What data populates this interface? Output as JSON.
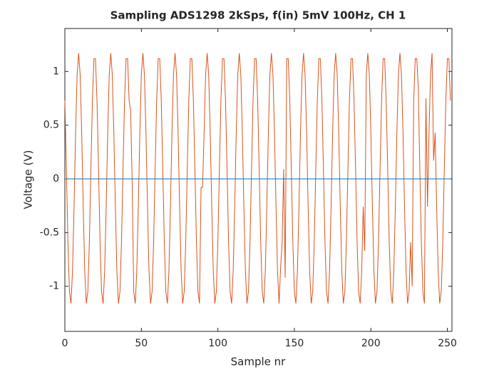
{
  "chart_data": {
    "type": "line",
    "title": "Sampling ADS1298 2kSps, f(in) 5mV 100Hz, CH 1",
    "xlabel": "Sample nr",
    "ylabel": "Voltage (V)",
    "xlim": [
      0,
      253
    ],
    "ylim": [
      -1.42,
      1.4
    ],
    "xticks": [
      0,
      50,
      100,
      150,
      200,
      250
    ],
    "yticks": [
      -1,
      -0.5,
      0,
      0.5,
      1
    ],
    "x": [
      0,
      1,
      2,
      3,
      4,
      5,
      6,
      7,
      8,
      9,
      10,
      11,
      12,
      13,
      14,
      15,
      16,
      17,
      18,
      19,
      20,
      21,
      22,
      23,
      24,
      25,
      26,
      27,
      28,
      29,
      30,
      31,
      32,
      33,
      34,
      35,
      36,
      37,
      38,
      39,
      40,
      41,
      42,
      43,
      44,
      45,
      46,
      47,
      48,
      49,
      50,
      51,
      52,
      53,
      54,
      55,
      56,
      57,
      58,
      59,
      60,
      61,
      62,
      63,
      64,
      65,
      66,
      67,
      68,
      69,
      70,
      71,
      72,
      73,
      74,
      75,
      76,
      77,
      78,
      79,
      80,
      81,
      82,
      83,
      84,
      85,
      86,
      87,
      88,
      89,
      90,
      91,
      92,
      93,
      94,
      95,
      96,
      97,
      98,
      99,
      100,
      101,
      102,
      103,
      104,
      105,
      106,
      107,
      108,
      109,
      110,
      111,
      112,
      113,
      114,
      115,
      116,
      117,
      118,
      119,
      120,
      121,
      122,
      123,
      124,
      125,
      126,
      127,
      128,
      129,
      130,
      131,
      132,
      133,
      134,
      135,
      136,
      137,
      138,
      139,
      140,
      141,
      142,
      143,
      144,
      145,
      146,
      147,
      148,
      149,
      150,
      151,
      152,
      153,
      154,
      155,
      156,
      157,
      158,
      159,
      160,
      161,
      162,
      163,
      164,
      165,
      166,
      167,
      168,
      169,
      170,
      171,
      172,
      173,
      174,
      175,
      176,
      177,
      178,
      179,
      180,
      181,
      182,
      183,
      184,
      185,
      186,
      187,
      188,
      189,
      190,
      191,
      192,
      193,
      194,
      195,
      196,
      197,
      198,
      199,
      200,
      201,
      202,
      203,
      204,
      205,
      206,
      207,
      208,
      209,
      210,
      211,
      212,
      213,
      214,
      215,
      216,
      217,
      218,
      219,
      220,
      221,
      222,
      223,
      224,
      225,
      226,
      227,
      228,
      229,
      230,
      231,
      232,
      233,
      234,
      235,
      236,
      237,
      238,
      239,
      240,
      241,
      242,
      243,
      244,
      245,
      246,
      247,
      248,
      249,
      250,
      251,
      252
    ],
    "series": [
      {
        "color": "#d95319",
        "values": [
          0.73,
          0.09,
          -0.59,
          -1.05,
          -1.16,
          -0.86,
          -0.26,
          0.43,
          0.97,
          1.17,
          0.97,
          0.43,
          -0.26,
          -0.86,
          -1.16,
          -1.05,
          -0.59,
          0.09,
          0.73,
          1.12,
          1.12,
          0.73,
          0.09,
          -0.59,
          -1.05,
          -1.16,
          -0.86,
          -0.26,
          0.43,
          0.97,
          1.17,
          0.97,
          0.43,
          -0.26,
          -0.86,
          -1.16,
          -1.05,
          -0.59,
          0.09,
          0.73,
          1.12,
          1.12,
          0.73,
          0.63,
          -0.05,
          -1.05,
          -1.16,
          -0.86,
          -0.26,
          0.43,
          0.97,
          1.17,
          0.97,
          0.43,
          -0.26,
          -0.86,
          -1.16,
          -1.05,
          -0.59,
          0.09,
          0.73,
          1.12,
          1.12,
          0.73,
          0.09,
          -0.59,
          -1.05,
          -1.16,
          -0.86,
          -0.26,
          0.43,
          0.97,
          1.17,
          0.97,
          0.43,
          -0.26,
          -0.86,
          -1.16,
          -1.05,
          -0.59,
          0.09,
          0.73,
          1.12,
          1.12,
          0.73,
          0.09,
          -0.59,
          -1.05,
          -1.16,
          -0.08,
          -0.08,
          0.43,
          0.97,
          1.17,
          0.97,
          0.43,
          -0.26,
          -0.86,
          -1.16,
          -1.05,
          -0.59,
          0.09,
          0.73,
          1.12,
          1.12,
          0.73,
          0.09,
          -0.59,
          -1.05,
          -1.16,
          -0.86,
          -0.26,
          0.43,
          0.97,
          1.17,
          0.97,
          0.43,
          -0.26,
          -0.86,
          -1.16,
          -1.05,
          -0.59,
          0.09,
          0.73,
          1.12,
          1.12,
          0.73,
          0.09,
          -0.59,
          -1.05,
          -1.16,
          -0.86,
          -0.26,
          0.43,
          0.97,
          1.17,
          0.97,
          0.43,
          -0.26,
          -0.86,
          -1.16,
          -0.83,
          -0.59,
          0.09,
          -0.92,
          1.12,
          1.12,
          0.73,
          0.09,
          -0.59,
          -1.05,
          -1.16,
          -0.86,
          -0.26,
          0.43,
          0.97,
          1.17,
          0.97,
          0.43,
          -0.26,
          -0.86,
          -1.16,
          -1.05,
          -0.59,
          0.09,
          0.73,
          1.12,
          1.12,
          0.73,
          0.09,
          -0.59,
          -1.05,
          -1.16,
          -0.86,
          -0.26,
          0.43,
          0.97,
          1.17,
          0.97,
          0.43,
          -0.26,
          -0.86,
          -1.16,
          -1.05,
          -0.59,
          0.09,
          0.73,
          1.12,
          1.12,
          0.73,
          0.09,
          -0.59,
          -1.05,
          -1.16,
          -0.86,
          -0.26,
          -0.67,
          0.97,
          1.17,
          0.97,
          0.43,
          -0.26,
          -0.86,
          -1.16,
          -1.05,
          -0.59,
          0.09,
          0.73,
          1.12,
          1.12,
          0.73,
          0.09,
          -0.59,
          -1.05,
          -1.16,
          -0.86,
          -0.26,
          0.43,
          0.97,
          1.17,
          0.97,
          0.43,
          -0.26,
          -0.86,
          -1.16,
          -1.05,
          -0.59,
          -1.0,
          0.73,
          1.12,
          1.12,
          0.85,
          0.09,
          -0.59,
          -1.05,
          -1.16,
          0.75,
          -0.26,
          0.43,
          0.97,
          1.17,
          0.17,
          0.43,
          -0.26,
          -0.86,
          -1.16,
          -1.05,
          -0.59,
          0.09,
          0.73,
          1.12,
          1.12,
          0.73
        ]
      },
      {
        "color": "#0072bd",
        "x": [
          0,
          252
        ],
        "values": [
          0,
          0
        ]
      }
    ]
  }
}
